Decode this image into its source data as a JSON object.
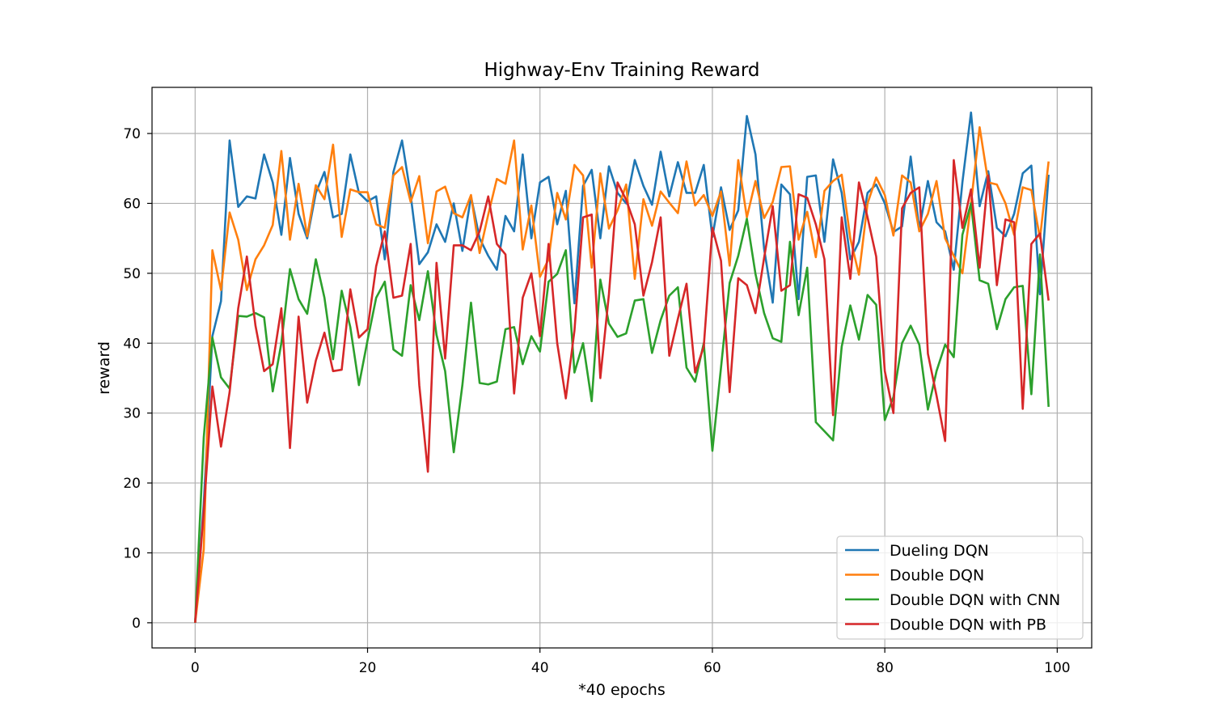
{
  "chart_data": {
    "type": "line",
    "title": "Highway-Env Training Reward",
    "xlabel": "*40 epochs",
    "ylabel": "reward",
    "xlim": [
      -5,
      104
    ],
    "ylim": [
      -3.6,
      76.6
    ],
    "xticks": [
      0,
      20,
      40,
      60,
      80,
      100
    ],
    "yticks": [
      0,
      10,
      20,
      30,
      40,
      50,
      60,
      70
    ],
    "grid": true,
    "legend_position": "lower-right",
    "x": [
      0,
      1,
      2,
      3,
      4,
      5,
      6,
      7,
      8,
      9,
      10,
      11,
      12,
      13,
      14,
      15,
      16,
      17,
      18,
      19,
      20,
      21,
      22,
      23,
      24,
      25,
      26,
      27,
      28,
      29,
      30,
      31,
      32,
      33,
      34,
      35,
      36,
      37,
      38,
      39,
      40,
      41,
      42,
      43,
      44,
      45,
      46,
      47,
      48,
      49,
      50,
      51,
      52,
      53,
      54,
      55,
      56,
      57,
      58,
      59,
      60,
      61,
      62,
      63,
      64,
      65,
      66,
      67,
      68,
      69,
      70,
      71,
      72,
      73,
      74,
      75,
      76,
      77,
      78,
      79,
      80,
      81,
      82,
      83,
      84,
      85,
      86,
      87,
      88,
      89,
      90,
      91,
      92,
      93,
      94,
      95,
      96,
      97,
      98,
      99
    ],
    "series": [
      {
        "name": "Dueling DQN",
        "color": "#1f77b4",
        "values": [
          0,
          17,
          41,
          46,
          69,
          59.5,
          61,
          60.7,
          67,
          63,
          55.5,
          66.5,
          58.5,
          55,
          61.5,
          64.5,
          58,
          58.5,
          67,
          61.5,
          60.3,
          61,
          52,
          64.5,
          69,
          61.2,
          51.3,
          53,
          57,
          54.5,
          60,
          53.2,
          61,
          55,
          52.5,
          50.5,
          58.2,
          56,
          67,
          55,
          63,
          63.8,
          57,
          61.8,
          45.7,
          62.5,
          64.8,
          55,
          65.3,
          61.5,
          60,
          66.2,
          62.5,
          59.8,
          67.4,
          61,
          65.9,
          61.5,
          61.5,
          65.5,
          55.2,
          62.3,
          56.2,
          59,
          72.5,
          67,
          53.5,
          45.8,
          62.7,
          61.3,
          46.3,
          63.8,
          64,
          54.5,
          66.3,
          61.5,
          52,
          54.5,
          61.5,
          62.7,
          60,
          55.9,
          56.7,
          66.7,
          56.3,
          63.2,
          57.3,
          56,
          50.5,
          63,
          73,
          59.6,
          64.6,
          56.5,
          55.3,
          58.5,
          64.3,
          65.4,
          47,
          64.1
        ]
      },
      {
        "name": "Double DQN",
        "color": "#ff7f0e",
        "values": [
          0,
          10.5,
          53.3,
          47.6,
          58.7,
          54.8,
          47.6,
          52,
          54,
          56.9,
          67.5,
          54.8,
          62.8,
          55.3,
          62.6,
          60.6,
          68.4,
          55.2,
          62,
          61.6,
          61.6,
          57,
          56.5,
          64,
          65.2,
          60.2,
          63.9,
          54.3,
          61.7,
          62.4,
          58.6,
          58,
          61.2,
          52.9,
          58.4,
          63.5,
          62.8,
          69,
          53.4,
          59.7,
          49.5,
          52,
          61.5,
          57.7,
          65.5,
          64,
          50.8,
          64.3,
          56.4,
          59,
          62.7,
          49.2,
          60.6,
          56.8,
          61.7,
          60.1,
          58.6,
          66,
          59.7,
          61.2,
          58.2,
          61.7,
          51.1,
          66.2,
          58,
          63.2,
          57.9,
          60.2,
          65.2,
          65.3,
          54.8,
          58.8,
          52.3,
          61.8,
          63.2,
          64.1,
          55,
          49.8,
          60,
          63.7,
          61.2,
          55.4,
          64,
          63,
          56,
          58.5,
          63.2,
          55,
          52.5,
          50,
          60,
          70.9,
          63,
          62.7,
          60,
          55.5,
          62.3,
          61.9,
          55,
          66
        ]
      },
      {
        "name": "Double DQN with CNN",
        "color": "#2ca02c",
        "values": [
          0,
          26.5,
          40.8,
          35.1,
          33.5,
          43.9,
          43.8,
          44.3,
          43.7,
          33.1,
          40,
          50.6,
          46.3,
          44.2,
          52,
          46.5,
          37.7,
          47.5,
          42.3,
          34,
          40.4,
          46.5,
          48.8,
          39.1,
          38.2,
          48.3,
          43.3,
          50.3,
          41.2,
          36,
          24.4,
          34,
          45.8,
          34.3,
          34.1,
          34.5,
          42,
          42.3,
          37,
          41,
          38.8,
          48.8,
          49.9,
          53.3,
          35.8,
          40,
          31.7,
          49.1,
          42.8,
          40.9,
          41.4,
          46.1,
          46.3,
          38.6,
          43.3,
          46.8,
          48,
          36.5,
          34.5,
          40,
          24.6,
          36.5,
          48.6,
          52.5,
          57.8,
          49.9,
          44.3,
          40.7,
          40.2,
          54.5,
          44,
          50.8,
          28.7,
          27.4,
          26.1,
          39.5,
          45.4,
          40.5,
          46.9,
          45.5,
          29,
          32.3,
          40,
          42.5,
          39.8,
          30.5,
          36,
          39.8,
          38,
          55.5,
          60,
          49,
          48.5,
          42,
          46.3,
          48,
          48.2,
          32.7,
          52.7,
          30.9
        ]
      },
      {
        "name": "Double DQN with PB",
        "color": "#d62728",
        "values": [
          0,
          16,
          33.8,
          25.2,
          33,
          45,
          52.4,
          42.5,
          36,
          37,
          45,
          25,
          43.8,
          31.5,
          37.5,
          41.5,
          36,
          36.2,
          47.7,
          40.8,
          42,
          51,
          56,
          46.5,
          46.8,
          54.2,
          34,
          21.6,
          51.5,
          37.8,
          54,
          54,
          53.3,
          56,
          61,
          54.2,
          52.7,
          32.8,
          46.5,
          50,
          41,
          54.2,
          40,
          32.1,
          41.8,
          58,
          58.4,
          35,
          47,
          63,
          60.5,
          57,
          46.8,
          51.6,
          58,
          38.2,
          43.5,
          48.5,
          35.8,
          39.5,
          56.5,
          51.8,
          33,
          49.3,
          48.3,
          44.3,
          52.2,
          59.6,
          47.5,
          48.3,
          61.3,
          60.8,
          57,
          52,
          29.7,
          58,
          49.2,
          63,
          58,
          52.4,
          36,
          30,
          59.3,
          61.5,
          62.3,
          38.5,
          32.5,
          26,
          66.2,
          56.5,
          62,
          50.8,
          64,
          48.3,
          57.7,
          57.3,
          30.6,
          54.2,
          55.7,
          46.1
        ]
      }
    ]
  }
}
